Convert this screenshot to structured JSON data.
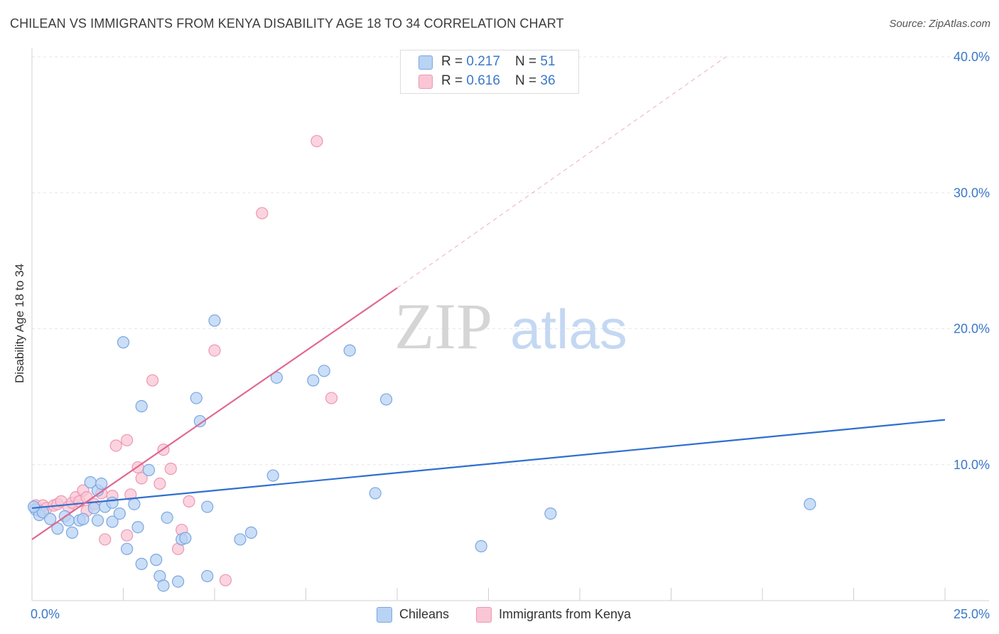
{
  "header": {
    "title": "CHILEAN VS IMMIGRANTS FROM KENYA DISABILITY AGE 18 TO 34 CORRELATION CHART",
    "source": "Source: ZipAtlas.com"
  },
  "watermark": {
    "zip": "ZIP",
    "atlas": "atlas"
  },
  "legend": {
    "rows": [
      {
        "r_label": "R = ",
        "r_value": "0.217",
        "n_label": "N = ",
        "n_value": "51"
      },
      {
        "r_label": "R = ",
        "r_value": "0.616",
        "n_label": "N = ",
        "n_value": "36"
      }
    ]
  },
  "colors": {
    "chileans_fill": "#b8d3f4",
    "chileans_stroke": "#7aa7e0",
    "chileans_line": "#2f6fcf",
    "kenya_fill": "#fac6d6",
    "kenya_stroke": "#ec97b2",
    "kenya_line": "#e06990",
    "tick_label": "#3a78c9",
    "grid": "#e6e6e6"
  },
  "chart_data": {
    "type": "scatter",
    "title": "CHILEAN VS IMMIGRANTS FROM KENYA DISABILITY AGE 18 TO 34 CORRELATION CHART",
    "xlabel": "",
    "ylabel": "Disability Age 18 to 34",
    "xlim": [
      0,
      25
    ],
    "ylim": [
      0,
      40
    ],
    "x_tick_labels": [
      {
        "value": 0,
        "label": "0.0%"
      },
      {
        "value": 25,
        "label": "25.0%"
      }
    ],
    "y_tick_labels": [
      {
        "value": 10,
        "label": "10.0%"
      },
      {
        "value": 20,
        "label": "20.0%"
      },
      {
        "value": 30,
        "label": "30.0%"
      },
      {
        "value": 40,
        "label": "40.0%"
      }
    ],
    "grid": true,
    "legend_position": "top-center",
    "series": [
      {
        "name": "Chileans",
        "points": [
          [
            0.1,
            6.7
          ],
          [
            0.2,
            6.3
          ],
          [
            0.3,
            6.5
          ],
          [
            0.5,
            6.0
          ],
          [
            0.7,
            5.3
          ],
          [
            0.9,
            6.2
          ],
          [
            1.0,
            5.9
          ],
          [
            1.1,
            5.0
          ],
          [
            1.3,
            5.9
          ],
          [
            1.4,
            6.0
          ],
          [
            1.6,
            8.7
          ],
          [
            1.7,
            6.8
          ],
          [
            1.8,
            5.9
          ],
          [
            1.8,
            8.1
          ],
          [
            1.9,
            8.6
          ],
          [
            2.0,
            6.9
          ],
          [
            2.2,
            7.2
          ],
          [
            2.2,
            5.8
          ],
          [
            2.4,
            6.4
          ],
          [
            2.5,
            19.0
          ],
          [
            2.6,
            3.8
          ],
          [
            2.8,
            7.1
          ],
          [
            2.9,
            5.4
          ],
          [
            3.0,
            14.3
          ],
          [
            3.0,
            2.7
          ],
          [
            3.2,
            9.6
          ],
          [
            3.4,
            3.0
          ],
          [
            3.5,
            1.8
          ],
          [
            3.6,
            1.1
          ],
          [
            3.7,
            6.1
          ],
          [
            4.0,
            1.4
          ],
          [
            4.1,
            4.5
          ],
          [
            4.2,
            4.6
          ],
          [
            4.5,
            14.9
          ],
          [
            4.6,
            13.2
          ],
          [
            4.8,
            6.9
          ],
          [
            4.8,
            1.8
          ],
          [
            5.0,
            20.6
          ],
          [
            5.7,
            4.5
          ],
          [
            6.0,
            5.0
          ],
          [
            6.6,
            9.2
          ],
          [
            6.7,
            16.4
          ],
          [
            7.7,
            16.2
          ],
          [
            8.0,
            16.9
          ],
          [
            8.7,
            18.4
          ],
          [
            9.4,
            7.9
          ],
          [
            9.7,
            14.8
          ],
          [
            12.3,
            4.0
          ],
          [
            14.2,
            6.4
          ],
          [
            21.3,
            7.1
          ],
          [
            0.05,
            6.9
          ]
        ],
        "trend_line": {
          "x": [
            0,
            25
          ],
          "y": [
            6.8,
            13.3
          ]
        }
      },
      {
        "name": "Immigrants from Kenya",
        "points": [
          [
            0.1,
            7.0
          ],
          [
            0.3,
            7.0
          ],
          [
            0.4,
            6.8
          ],
          [
            0.6,
            7.0
          ],
          [
            0.7,
            7.1
          ],
          [
            0.8,
            7.3
          ],
          [
            1.0,
            6.9
          ],
          [
            1.1,
            7.2
          ],
          [
            1.2,
            7.6
          ],
          [
            1.3,
            7.3
          ],
          [
            1.4,
            8.1
          ],
          [
            1.5,
            6.6
          ],
          [
            1.5,
            7.6
          ],
          [
            1.7,
            7.1
          ],
          [
            1.9,
            7.9
          ],
          [
            2.0,
            4.5
          ],
          [
            2.2,
            7.7
          ],
          [
            2.3,
            11.4
          ],
          [
            2.6,
            11.8
          ],
          [
            2.6,
            4.8
          ],
          [
            2.7,
            7.8
          ],
          [
            2.9,
            9.8
          ],
          [
            3.0,
            9.0
          ],
          [
            3.3,
            16.2
          ],
          [
            3.5,
            8.6
          ],
          [
            3.6,
            11.1
          ],
          [
            3.8,
            9.7
          ],
          [
            4.0,
            3.8
          ],
          [
            4.1,
            5.2
          ],
          [
            4.3,
            7.3
          ],
          [
            5.0,
            18.4
          ],
          [
            5.3,
            1.5
          ],
          [
            6.3,
            28.5
          ],
          [
            7.8,
            33.8
          ],
          [
            8.2,
            14.9
          ],
          [
            0.2,
            6.6
          ]
        ],
        "trend_line": {
          "x": [
            0,
            10
          ],
          "y": [
            4.5,
            23.0
          ]
        },
        "trend_extension": {
          "x": [
            10,
            19.0
          ],
          "y": [
            23.0,
            40.0
          ]
        }
      }
    ]
  },
  "bottom_legend": [
    {
      "label": "Chileans"
    },
    {
      "label": "Immigrants from Kenya"
    }
  ]
}
